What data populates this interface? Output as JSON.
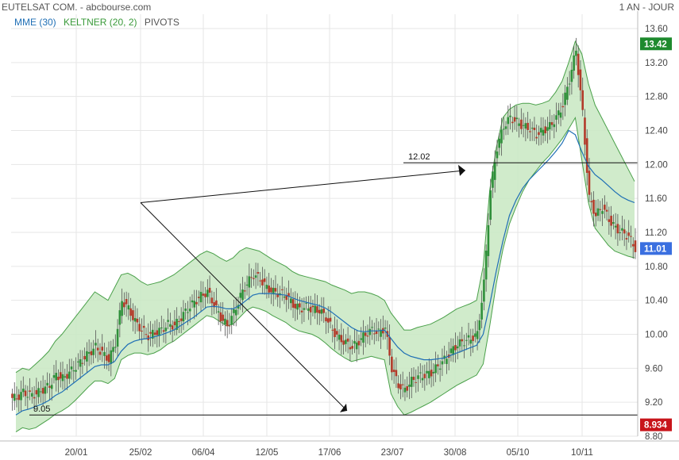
{
  "header": {
    "title": "EUTELSAT COM. - abcbourse.com",
    "period": "1 AN - JOUR"
  },
  "legend": [
    {
      "label": "MME (30)",
      "color": "#1f6fb5"
    },
    {
      "label": "KELTNER (20, 2)",
      "color": "#3a9a3a"
    },
    {
      "label": "PIVOTS",
      "color": "#555555"
    }
  ],
  "chart_data": {
    "type": "candlestick",
    "y_ticks": [
      "13.60",
      "13.20",
      "12.80",
      "12.40",
      "12.00",
      "11.60",
      "11.20",
      "10.80",
      "10.40",
      "10.00",
      "9.60",
      "9.20",
      "8.80"
    ],
    "ylim": [
      8.8,
      13.6
    ],
    "x_ticks": [
      "20/01",
      "25/02",
      "06/04",
      "12/05",
      "17/06",
      "23/07",
      "30/08",
      "05/10",
      "10/11"
    ],
    "price_tags": [
      {
        "label": "13.42",
        "value": 13.42,
        "color": "#1e8a2e"
      },
      {
        "label": "11.01",
        "value": 11.01,
        "color": "#3a6fe0"
      },
      {
        "label": "8.934",
        "value": 8.934,
        "color": "#c8151b"
      }
    ],
    "levels": [
      {
        "label": "12.02",
        "value": 12.02
      },
      {
        "label": "9.05",
        "value": 9.05
      }
    ],
    "close_series": [
      9.25,
      9.32,
      9.28,
      9.3,
      9.35,
      9.4,
      9.52,
      9.48,
      9.55,
      9.62,
      9.7,
      9.78,
      9.85,
      9.78,
      9.7,
      9.9,
      10.4,
      10.3,
      10.15,
      10.05,
      9.98,
      10.02,
      10.05,
      10.12,
      10.1,
      10.2,
      10.3,
      10.38,
      10.45,
      10.5,
      10.35,
      10.2,
      10.1,
      10.25,
      10.45,
      10.6,
      10.7,
      10.65,
      10.55,
      10.5,
      10.48,
      10.45,
      10.35,
      10.3,
      10.32,
      10.3,
      10.28,
      10.2,
      10.05,
      9.95,
      9.9,
      9.85,
      9.92,
      10.0,
      10.05,
      10.02,
      10.08,
      9.6,
      9.4,
      9.35,
      9.45,
      9.5,
      9.52,
      9.55,
      9.62,
      9.7,
      9.8,
      9.88,
      9.92,
      9.95,
      10.0,
      10.6,
      11.7,
      12.2,
      12.45,
      12.55,
      12.5,
      12.45,
      12.42,
      12.35,
      12.4,
      12.45,
      12.55,
      12.7,
      13.0,
      13.35,
      12.6,
      11.6,
      11.4,
      11.5,
      11.35,
      11.25,
      11.2,
      11.15,
      11.01
    ],
    "keltner_upper": [
      9.55,
      9.6,
      9.58,
      9.65,
      9.72,
      9.8,
      9.92,
      10.0,
      10.1,
      10.2,
      10.3,
      10.4,
      10.5,
      10.45,
      10.4,
      10.55,
      10.7,
      10.72,
      10.68,
      10.62,
      10.58,
      10.6,
      10.62,
      10.66,
      10.7,
      10.76,
      10.82,
      10.88,
      10.94,
      10.98,
      10.95,
      10.9,
      10.86,
      10.9,
      10.98,
      11.02,
      11.0,
      10.98,
      10.93,
      10.88,
      10.84,
      10.8,
      10.74,
      10.7,
      10.68,
      10.66,
      10.64,
      10.62,
      10.58,
      10.55,
      10.52,
      10.48,
      10.5,
      10.5,
      10.48,
      10.45,
      10.4,
      10.25,
      10.15,
      10.05,
      10.05,
      10.08,
      10.1,
      10.12,
      10.16,
      10.2,
      10.25,
      10.3,
      10.33,
      10.36,
      10.4,
      10.8,
      11.7,
      12.2,
      12.55,
      12.65,
      12.7,
      12.72,
      12.72,
      12.7,
      12.72,
      12.75,
      12.85,
      12.98,
      13.2,
      13.45,
      13.3,
      12.95,
      12.7,
      12.55,
      12.4,
      12.25,
      12.1,
      11.95,
      11.8
    ],
    "keltner_lower": [
      8.85,
      8.9,
      8.88,
      8.9,
      8.95,
      9.0,
      9.06,
      9.1,
      9.15,
      9.22,
      9.3,
      9.38,
      9.45,
      9.45,
      9.42,
      9.48,
      9.7,
      9.75,
      9.78,
      9.78,
      9.76,
      9.78,
      9.82,
      9.88,
      9.92,
      9.98,
      10.04,
      10.1,
      10.16,
      10.22,
      10.2,
      10.15,
      10.1,
      10.12,
      10.2,
      10.28,
      10.32,
      10.3,
      10.27,
      10.22,
      10.18,
      10.14,
      10.08,
      10.04,
      10.02,
      10.0,
      9.96,
      9.9,
      9.83,
      9.77,
      9.72,
      9.68,
      9.7,
      9.72,
      9.74,
      9.72,
      9.7,
      9.3,
      9.15,
      9.05,
      9.08,
      9.12,
      9.16,
      9.2,
      9.25,
      9.3,
      9.35,
      9.4,
      9.44,
      9.48,
      9.52,
      9.65,
      10.1,
      10.6,
      11.0,
      11.3,
      11.5,
      11.68,
      11.82,
      11.92,
      12.02,
      12.1,
      12.2,
      12.3,
      12.42,
      12.55,
      12.05,
      11.55,
      11.25,
      11.15,
      11.05,
      10.98,
      10.95,
      10.92,
      10.9
    ],
    "mme_series": [
      9.05,
      9.1,
      9.12,
      9.15,
      9.18,
      9.22,
      9.28,
      9.32,
      9.38,
      9.44,
      9.5,
      9.56,
      9.62,
      9.64,
      9.64,
      9.68,
      9.8,
      9.88,
      9.92,
      9.94,
      9.95,
      9.97,
      9.99,
      10.02,
      10.05,
      10.1,
      10.15,
      10.2,
      10.26,
      10.32,
      10.33,
      10.32,
      10.3,
      10.3,
      10.34,
      10.4,
      10.46,
      10.48,
      10.48,
      10.48,
      10.47,
      10.46,
      10.43,
      10.4,
      10.38,
      10.36,
      10.34,
      10.31,
      10.26,
      10.2,
      10.14,
      10.08,
      10.04,
      10.03,
      10.04,
      10.04,
      10.05,
      9.95,
      9.85,
      9.78,
      9.74,
      9.72,
      9.7,
      9.7,
      9.71,
      9.72,
      9.75,
      9.78,
      9.81,
      9.84,
      9.87,
      10.0,
      10.35,
      10.75,
      11.1,
      11.4,
      11.58,
      11.72,
      11.82,
      11.9,
      11.98,
      12.06,
      12.15,
      12.25,
      12.4,
      12.35,
      12.15,
      11.98,
      11.88,
      11.82,
      11.75,
      11.68,
      11.62,
      11.58,
      11.55
    ],
    "pivot_lines": [
      {
        "from": [
          20,
          11.55
        ],
        "to": [
          72,
          11.95
        ]
      },
      {
        "from": [
          20,
          11.55
        ],
        "to": [
          52,
          9.05
        ]
      }
    ]
  }
}
